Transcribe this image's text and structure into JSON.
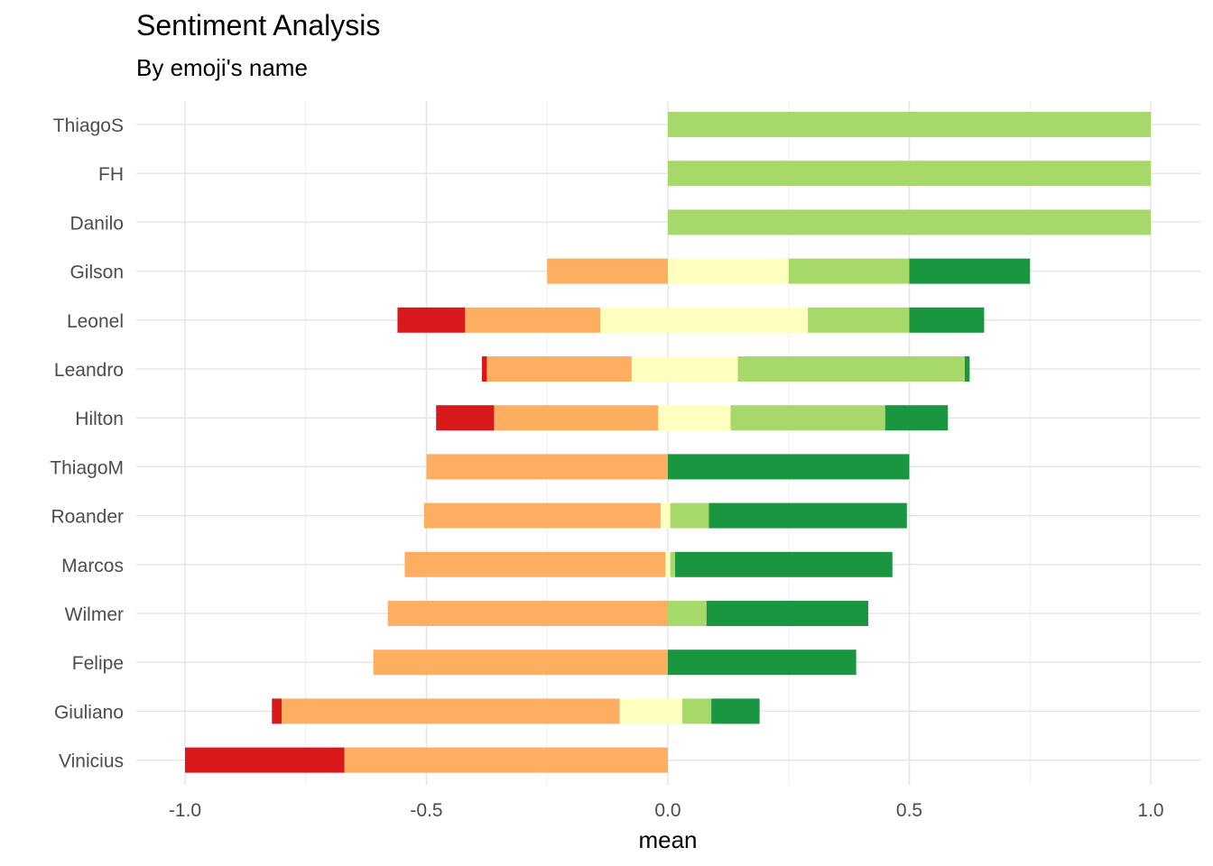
{
  "chart_data": {
    "type": "bar",
    "orientation": "horizontal",
    "stacked": "diverging",
    "title": "Sentiment Analysis",
    "subtitle": "By emoji's name",
    "xlabel": "mean",
    "ylabel": "",
    "xlim": [
      -1.0,
      1.0
    ],
    "xticks": [
      -1.0,
      -0.5,
      0.0,
      0.5,
      1.0
    ],
    "xtick_labels": [
      "-1.0",
      "-0.5",
      "0.0",
      "0.5",
      "1.0"
    ],
    "grid": true,
    "legend": "none",
    "categories": [
      "ThiagoS",
      "FH",
      "Danilo",
      "Gilson",
      "Leonel",
      "Leandro",
      "Hilton",
      "ThiagoM",
      "Roander",
      "Marcos",
      "Wilmer",
      "Felipe",
      "Giuliano",
      "Vinicius"
    ],
    "series": [
      {
        "color": "#d7191c",
        "values": [
          0,
          0,
          0,
          0,
          -0.14,
          -0.01,
          -0.12,
          0,
          0,
          0,
          0,
          0,
          -0.02,
          -0.33
        ]
      },
      {
        "color": "#fdae61",
        "values": [
          0,
          0,
          0,
          -0.25,
          -0.28,
          -0.3,
          -0.34,
          -0.5,
          -0.49,
          -0.54,
          -0.58,
          -0.61,
          -0.7,
          -0.67
        ]
      },
      {
        "color": "#ffffbf",
        "values": [
          0,
          0,
          0,
          0.25,
          0.43,
          0.22,
          0.15,
          0,
          0.02,
          0.01,
          0,
          0,
          0.13,
          0
        ]
      },
      {
        "color": "#a6d96a",
        "values": [
          1.0,
          1.0,
          1.0,
          0.25,
          0.21,
          0.47,
          0.32,
          0,
          0.08,
          0.01,
          0.08,
          0,
          0.06,
          0
        ]
      },
      {
        "color": "#1a9641",
        "values": [
          0,
          0,
          0,
          0.25,
          0.155,
          0.01,
          0.13,
          0.5,
          0.41,
          0.45,
          0.335,
          0.39,
          0.1,
          0
        ]
      }
    ],
    "neutral_offsets": [
      0,
      0,
      0,
      0,
      -0.14,
      -0.075,
      -0.02,
      0,
      -0.015,
      -0.005,
      0,
      0,
      -0.1,
      0
    ]
  }
}
